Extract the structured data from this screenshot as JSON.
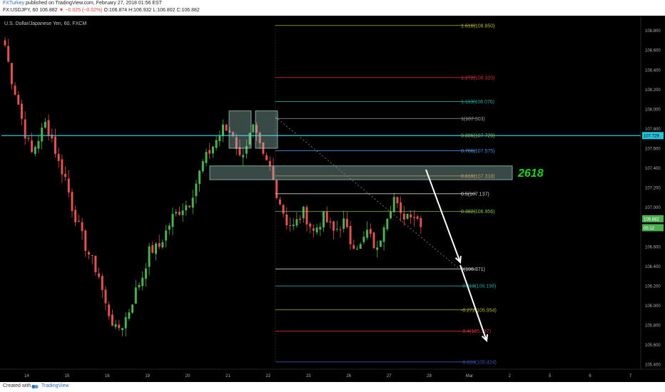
{
  "header": {
    "author": "FXTurkey",
    "published": "published on TradingView.com, February 27, 2018 01:56 EST",
    "symbol": "FX:USDJPY, 60",
    "last_price": "106.882",
    "change": "−0.025 (−0.02%)",
    "ohlc": "O:106.874 H:106.932 L:106.802 C:106.882"
  },
  "chart_data": {
    "type": "candlestick",
    "title": "U.S. Dollar/Japanese Yen, 60, FXCM",
    "ylim": [
      105.35,
      108.95
    ],
    "y_ticks": [
      "108.800",
      "108.600",
      "108.400",
      "108.200",
      "108.000",
      "107.800",
      "107.600",
      "107.400",
      "107.200",
      "107.000",
      "106.800",
      "106.600",
      "106.400",
      "106.200",
      "106.000",
      "105.800",
      "105.600",
      "105.400"
    ],
    "y_tick_values": [
      108.8,
      108.6,
      108.4,
      108.2,
      108.0,
      107.8,
      107.6,
      107.4,
      107.2,
      107.0,
      106.8,
      106.6,
      106.4,
      106.2,
      106.0,
      105.8,
      105.6,
      105.4
    ],
    "x_ticks": [
      "14",
      "15",
      "16",
      "19",
      "20",
      "21",
      "22",
      "23",
      "26",
      "27",
      "28",
      "Mar",
      "2",
      "5",
      "6",
      "7"
    ],
    "x_tick_index": [
      5,
      17,
      29,
      41,
      53,
      65,
      77,
      89,
      101,
      113,
      125,
      137,
      149,
      161,
      173,
      185
    ],
    "close_path": [
      108.65,
      108.3,
      108.05,
      107.75,
      107.55,
      107.7,
      107.85,
      107.7,
      107.45,
      107.3,
      107.0,
      106.8,
      106.6,
      106.45,
      106.3,
      106.0,
      105.75,
      105.8,
      105.95,
      106.15,
      106.3,
      106.55,
      106.6,
      106.75,
      106.9,
      107.0,
      107.05,
      107.25,
      107.45,
      107.8,
      107.75,
      107.5,
      107.8,
      107.5,
      107.4,
      107.15,
      106.85,
      106.8,
      106.95,
      106.75,
      106.9,
      106.75,
      106.85,
      106.65,
      106.6,
      106.75,
      106.55,
      106.85,
      107.1,
      106.9,
      106.95,
      106.85
    ],
    "close_path_index": [
      0,
      2,
      4,
      6,
      8,
      10,
      12,
      14,
      16,
      18,
      20,
      22,
      24,
      26,
      28,
      30,
      33,
      35,
      37,
      39,
      41,
      43,
      46,
      48,
      50,
      53,
      55,
      57,
      59,
      65,
      68,
      70,
      74,
      77,
      79,
      81,
      84,
      86,
      89,
      92,
      95,
      98,
      101,
      103,
      106,
      108,
      111,
      113,
      116,
      118,
      121,
      124
    ],
    "fib_levels": [
      {
        "label": "1.618(108.850)",
        "value": 108.85,
        "color": "#b6b62f"
      },
      {
        "label": "1.272(108.320)",
        "value": 108.32,
        "color": "#d32f2f"
      },
      {
        "label": "1.113(108.076)",
        "value": 108.076,
        "color": "#26a69a"
      },
      {
        "label": "1(107.903)",
        "value": 107.903,
        "color": "#9e9e9e"
      },
      {
        "label": "0.886(107.729)",
        "value": 107.729,
        "color": "#bdbd3a"
      },
      {
        "label": "0.786(107.575)",
        "value": 107.575,
        "color": "#4a90d9"
      },
      {
        "label": "0.618(107.318)",
        "value": 107.318,
        "color": "#e0852a"
      },
      {
        "label": "0.5(107.137)",
        "value": 107.137,
        "color": "#cfcfcf"
      },
      {
        "label": "0.382(106.956)",
        "value": 106.956,
        "color": "#8bc34a"
      },
      {
        "label": "0(106.371)",
        "value": 106.371,
        "color": "#cfcfcf"
      },
      {
        "label": "-0.113(106.198)",
        "value": 106.198,
        "color": "#26a69a"
      },
      {
        "label": "-0.272(105.954)",
        "value": 105.954,
        "color": "#b6b62f"
      },
      {
        "label": "-0.4(105.737)",
        "value": 105.737,
        "color": "#d32f2f"
      },
      {
        "label": "-0.618(105.424)",
        "value": 105.424,
        "color": "#3f51b5"
      }
    ],
    "horizontal_line": {
      "value": 107.729,
      "label": "107.729",
      "color": "#26c6da"
    },
    "price_tags": [
      {
        "label": "106.882",
        "value": 106.882,
        "color": "#4caf50"
      },
      {
        "label": "05:12",
        "value": 106.82,
        "color": "#4caf50"
      }
    ],
    "annotation": {
      "label": "2618",
      "color": "#1fd41f"
    },
    "colors": {
      "up": "#4caf50",
      "down": "#e05252",
      "background": "#000000",
      "axis_text": "#b0b0b0",
      "arrow": "#ffffff"
    }
  },
  "footer": {
    "created_with": "Created with",
    "brand": "TradingView"
  }
}
